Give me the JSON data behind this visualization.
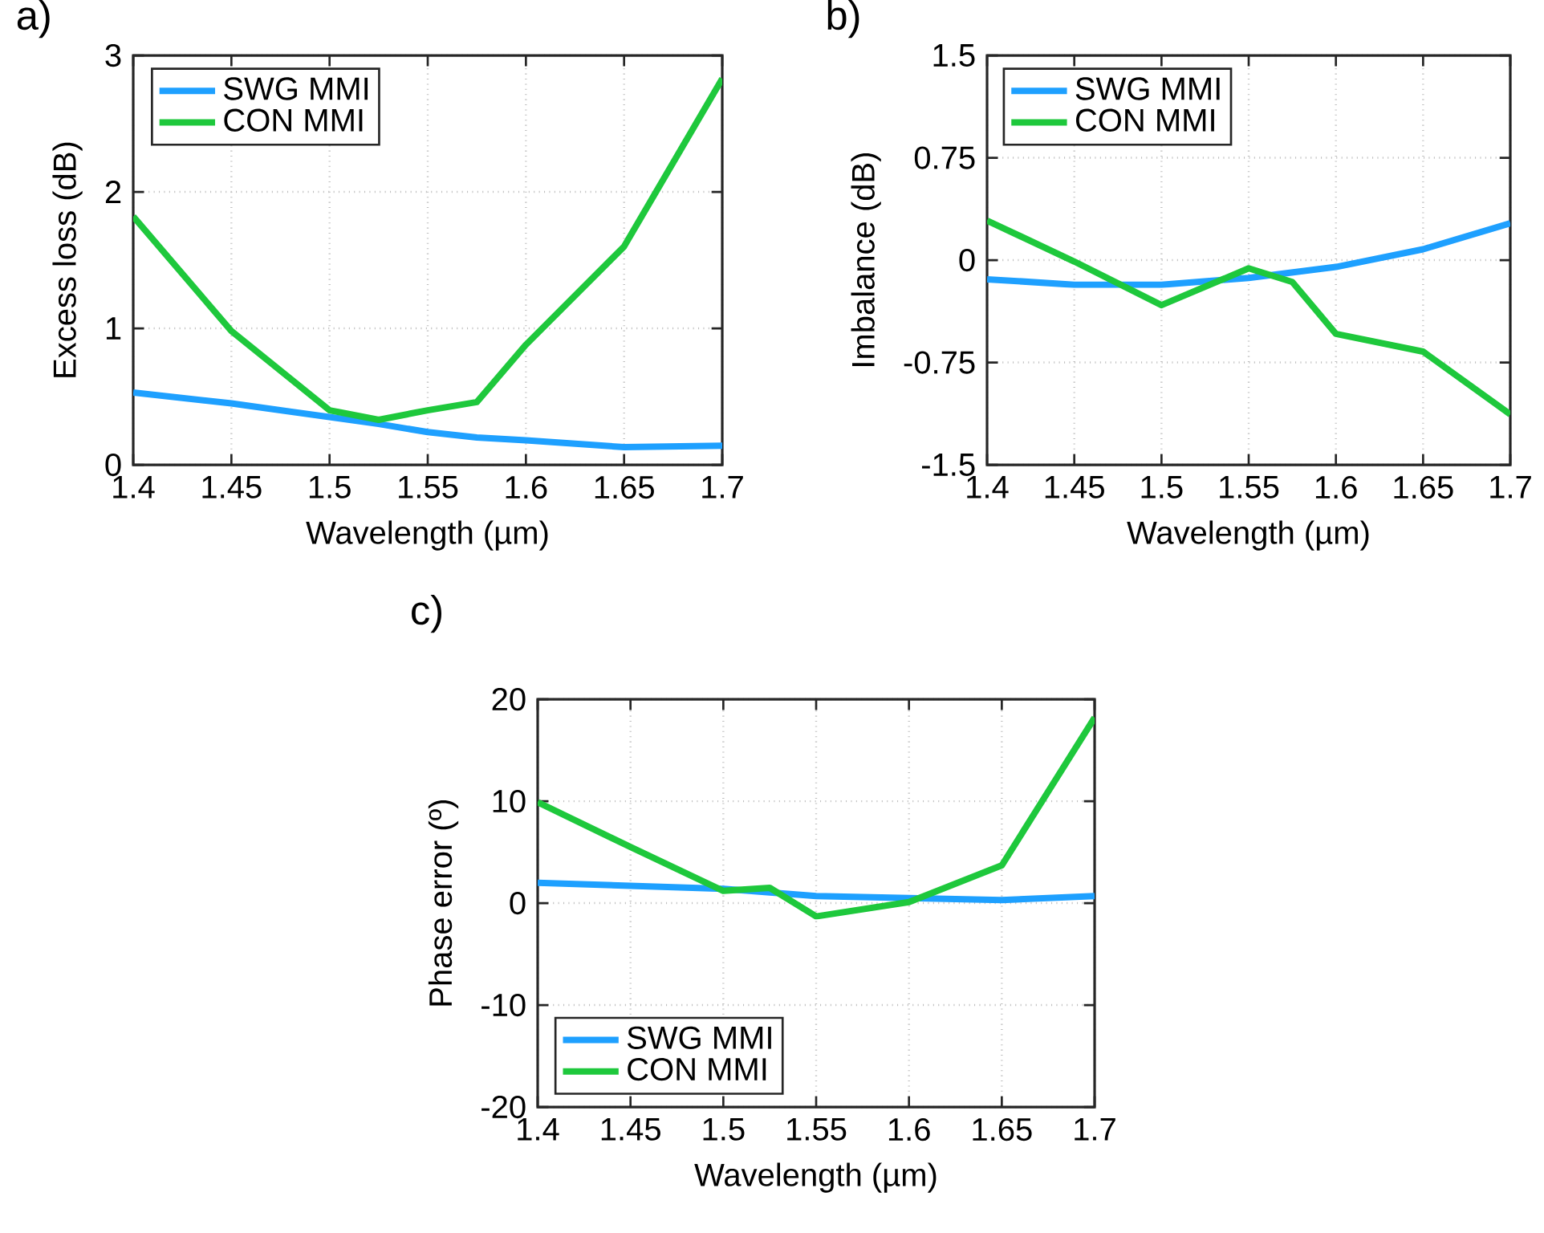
{
  "chart_data": [
    {
      "type": "line",
      "title": "a)",
      "xlabel": "Wavelength (µm)",
      "ylabel": "Excess loss (dB)",
      "xlim": [
        1.4,
        1.7
      ],
      "xticks": [
        1.4,
        1.45,
        1.5,
        1.55,
        1.6,
        1.65,
        1.7
      ],
      "ylim": [
        0,
        3
      ],
      "yticks": [
        0,
        1,
        2,
        3
      ],
      "grid": true,
      "legend": "top left",
      "marker": "none",
      "line_style": "solid",
      "series": [
        {
          "name": "SWG MMI",
          "color": "#1ea0ff",
          "x": [
            1.4,
            1.45,
            1.5,
            1.525,
            1.55,
            1.575,
            1.6,
            1.65,
            1.7
          ],
          "values": [
            0.53,
            0.45,
            0.35,
            0.3,
            0.24,
            0.2,
            0.18,
            0.13,
            0.14
          ]
        },
        {
          "name": "CON MMI",
          "color": "#1ec83c",
          "x": [
            1.4,
            1.45,
            1.5,
            1.525,
            1.55,
            1.575,
            1.6,
            1.65,
            1.7
          ],
          "values": [
            1.82,
            0.98,
            0.4,
            0.33,
            0.4,
            0.46,
            0.88,
            1.6,
            2.83
          ]
        }
      ]
    },
    {
      "type": "line",
      "title": "b)",
      "xlabel": "Wavelength (µm)",
      "ylabel": "Imbalance (dB)",
      "xlim": [
        1.4,
        1.7
      ],
      "xticks": [
        1.4,
        1.45,
        1.5,
        1.55,
        1.6,
        1.65,
        1.7
      ],
      "ylim": [
        -1.5,
        1.5
      ],
      "yticks": [
        -1.5,
        -0.75,
        0,
        0.75,
        1.5
      ],
      "grid": true,
      "legend": "top left",
      "marker": "none",
      "line_style": "solid",
      "series": [
        {
          "name": "SWG MMI",
          "color": "#1ea0ff",
          "x": [
            1.4,
            1.45,
            1.5,
            1.55,
            1.6,
            1.65,
            1.7
          ],
          "values": [
            -0.14,
            -0.18,
            -0.18,
            -0.13,
            -0.05,
            0.08,
            0.27
          ]
        },
        {
          "name": "CON MMI",
          "color": "#1ec83c",
          "x": [
            1.4,
            1.45,
            1.5,
            1.55,
            1.575,
            1.6,
            1.65,
            1.7
          ],
          "values": [
            0.29,
            -0.01,
            -0.33,
            -0.06,
            -0.16,
            -0.54,
            -0.67,
            -1.13
          ]
        }
      ]
    },
    {
      "type": "line",
      "title": "c)",
      "xlabel": "Wavelength (µm)",
      "ylabel": "Phase error (º)",
      "xlim": [
        1.4,
        1.7
      ],
      "xticks": [
        1.4,
        1.45,
        1.5,
        1.55,
        1.6,
        1.65,
        1.7
      ],
      "ylim": [
        -20,
        20
      ],
      "yticks": [
        -20,
        -10,
        0,
        10,
        20
      ],
      "grid": true,
      "legend": "bottom left",
      "marker": "none",
      "line_style": "solid",
      "series": [
        {
          "name": "SWG MMI",
          "color": "#1ea0ff",
          "x": [
            1.4,
            1.5,
            1.55,
            1.6,
            1.65,
            1.7
          ],
          "values": [
            2.0,
            1.4,
            0.7,
            0.5,
            0.3,
            0.7
          ]
        },
        {
          "name": "CON MMI",
          "color": "#1ec83c",
          "x": [
            1.4,
            1.45,
            1.5,
            1.525,
            1.55,
            1.6,
            1.65,
            1.7
          ],
          "values": [
            9.9,
            5.5,
            1.2,
            1.5,
            -1.3,
            0.1,
            3.7,
            18.2
          ]
        }
      ]
    }
  ]
}
